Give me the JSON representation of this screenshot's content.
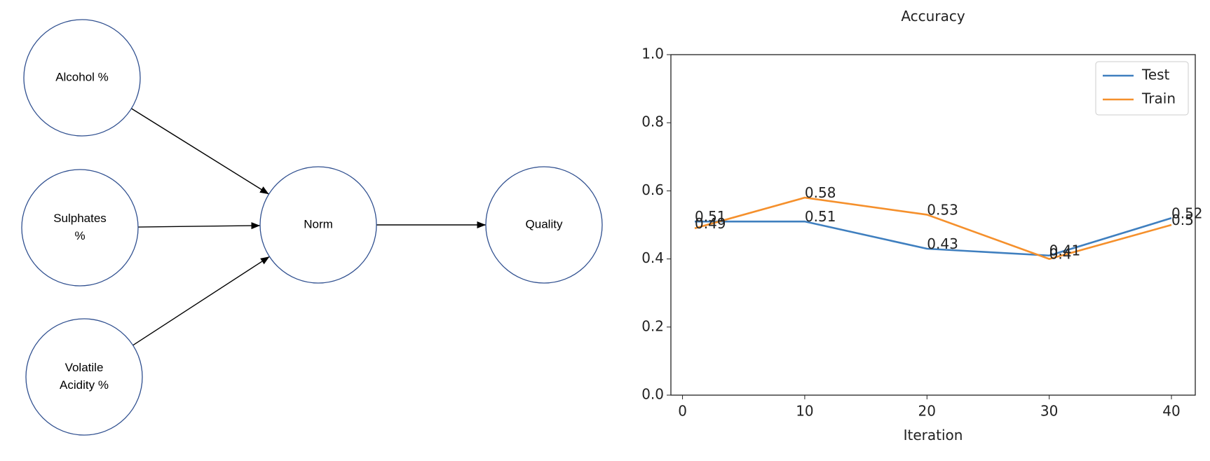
{
  "diagram": {
    "nodes": [
      {
        "label": [
          "Alcohol %"
        ]
      },
      {
        "label": [
          "Sulphates",
          "%"
        ]
      },
      {
        "label": [
          "Volatile",
          "Acidity %"
        ]
      },
      {
        "label": [
          "Norm"
        ]
      },
      {
        "label": [
          "Quality"
        ]
      }
    ]
  },
  "chart_data": {
    "type": "line",
    "title": "Accuracy",
    "x_label": "Iteration",
    "x": [
      1,
      10,
      20,
      30,
      40
    ],
    "series": [
      {
        "name": "Test",
        "color": "#3f7fbf",
        "values": [
          0.51,
          0.51,
          0.43,
          0.41,
          0.52
        ]
      },
      {
        "name": "Train",
        "color": "#f5902c",
        "values": [
          0.49,
          0.58,
          0.53,
          0.4,
          0.5
        ]
      }
    ],
    "xlim": [
      -0.95,
      41.95
    ],
    "xticks": [
      0,
      10,
      20,
      30,
      40
    ],
    "ylim": [
      0,
      1
    ],
    "yticks": [
      {
        "value": 0,
        "label": "0.0"
      },
      0.2,
      0.4,
      0.6,
      0.8,
      {
        "value": 1,
        "label": "1.0"
      }
    ],
    "grid": false,
    "legend": "upper right",
    "data_labels": true
  }
}
